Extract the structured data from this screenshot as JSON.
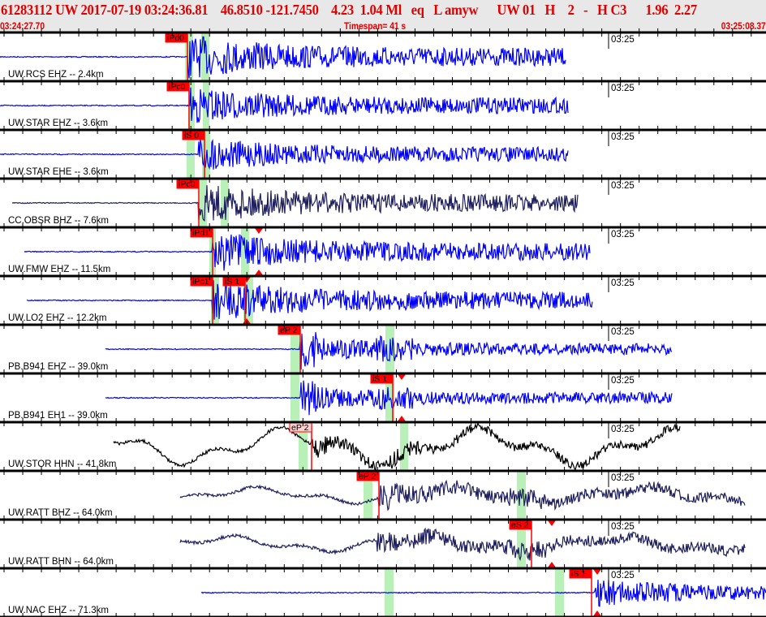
{
  "header": {
    "title": "61283112 UW 2017-07-19 03:24:36.81    46.8510 -121.7450    4.23  1.04 Ml   eq   L amyw      UW 01   H    2   -   H C3      1.96  2.27",
    "start_time": "03:24:27.70",
    "timespan": "Timespan=  41 s",
    "end_time": "03:25:08.37"
  },
  "colors": {
    "pick": "#ff0000",
    "window": "#b8f0b8",
    "trace_blue": "#0000ff",
    "trace_navy": "#202060",
    "trace_black": "#000000",
    "header_text": "#e00000"
  },
  "minute_label": "03:25",
  "traces": [
    {
      "label": "UW.RCS EHZ -- 2.4km",
      "color": "blue",
      "picks": [
        "iPd0"
      ]
    },
    {
      "label": "UW.STAR EHZ -- 3.6km",
      "color": "blue",
      "picks": [
        "iPc0"
      ]
    },
    {
      "label": "UW.STAR EHE -- 3.6km",
      "color": "blue",
      "picks": [
        "iS 0"
      ]
    },
    {
      "label": "CC.OBSR BHZ -- 7.6km",
      "color": "navy",
      "picks": [
        "iPc0"
      ]
    },
    {
      "label": "UW.FMW EHZ -- 11.5km",
      "color": "blue",
      "picks": [
        "iPd1"
      ]
    },
    {
      "label": "UW.LO2 EHZ -- 12.2km",
      "color": "blue",
      "picks": [
        "iPc1",
        "iS 1"
      ]
    },
    {
      "label": "PB.B941 EHZ -- 39.0km",
      "color": "blue",
      "picks": [
        "eP 2"
      ]
    },
    {
      "label": "PB.B941 EH1 -- 39.0km",
      "color": "blue",
      "picks": [
        "iS 1"
      ]
    },
    {
      "label": "UW.STOR HHN -- 41.8km",
      "color": "black",
      "picks": [
        "eP 2"
      ]
    },
    {
      "label": "UW.RATT BHZ -- 64.0km",
      "color": "navy",
      "picks": [
        "eP 2"
      ]
    },
    {
      "label": "UW.RATT BHN -- 64.0km",
      "color": "navy",
      "picks": [
        "eS 2"
      ]
    },
    {
      "label": "UW.NAC EHZ -- 71.3km",
      "color": "blue",
      "picks": [
        "iS 1"
      ]
    }
  ]
}
